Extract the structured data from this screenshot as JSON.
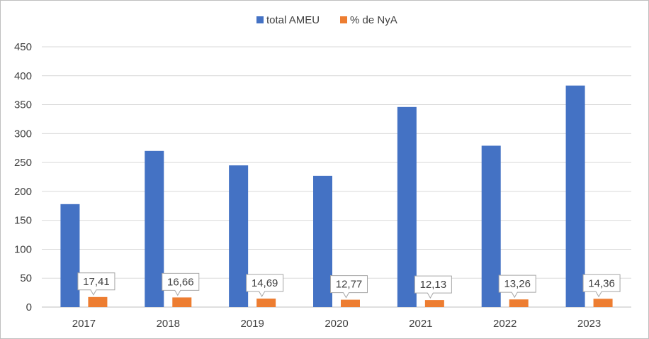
{
  "chart_data": {
    "type": "bar",
    "categories": [
      "2017",
      "2018",
      "2019",
      "2020",
      "2021",
      "2022",
      "2023"
    ],
    "series": [
      {
        "name": "total AMEU",
        "color": "#4472c4",
        "values": [
          178,
          270,
          245,
          227,
          346,
          279,
          383
        ]
      },
      {
        "name": "% de NyA",
        "color": "#ed7d31",
        "values": [
          17.41,
          16.66,
          14.69,
          12.77,
          12.13,
          13.26,
          14.36
        ],
        "data_labels": [
          "17,41",
          "16,66",
          "14,69",
          "12,77",
          "12,13",
          "13,26",
          "14,36"
        ]
      }
    ],
    "y_ticks": [
      "0",
      "50",
      "100",
      "150",
      "200",
      "250",
      "300",
      "350",
      "400",
      "450"
    ],
    "ylim": [
      0,
      450
    ],
    "grid": true,
    "legend_position": "top"
  }
}
